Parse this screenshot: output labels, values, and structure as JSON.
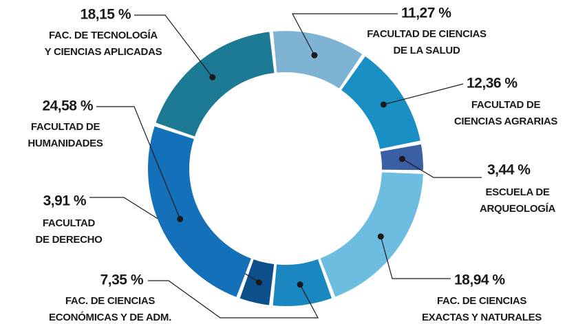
{
  "chart_data": {
    "type": "donut",
    "categories": [
      [
        "FACULTAD DE CIENCIAS",
        "DE LA SALUD"
      ],
      [
        "FACULTAD DE",
        "CIENCIAS AGRARIAS"
      ],
      [
        "ESCUELA DE",
        "ARQUEOLOGÍA"
      ],
      [
        "FAC. DE CIENCIAS",
        "EXACTAS Y NATURALES"
      ],
      [
        "FAC. DE CIENCIAS",
        "ECONÓMICAS Y DE ADM."
      ],
      [
        "FACULTAD",
        "DE DERECHO"
      ],
      [
        "FACULTAD DE",
        "HUMANIDADES"
      ],
      [
        "FAC. DE TECNOLOGÍA",
        "Y CIENCIAS APLICADAS"
      ]
    ],
    "values": [
      11.27,
      12.36,
      3.44,
      18.94,
      7.35,
      3.91,
      24.58,
      18.15
    ],
    "value_labels": [
      "11,27 %",
      "12,36 %",
      "3,44 %",
      "18,94 %",
      "7,35 %",
      "3,91 %",
      "24,58 %",
      "18,15 %"
    ],
    "colors": [
      "#7fb3d3",
      "#1a8fc4",
      "#3a5fa3",
      "#6dbde0",
      "#1a87c0",
      "#0d4f8a",
      "#1470b8",
      "#1d7a94"
    ]
  }
}
